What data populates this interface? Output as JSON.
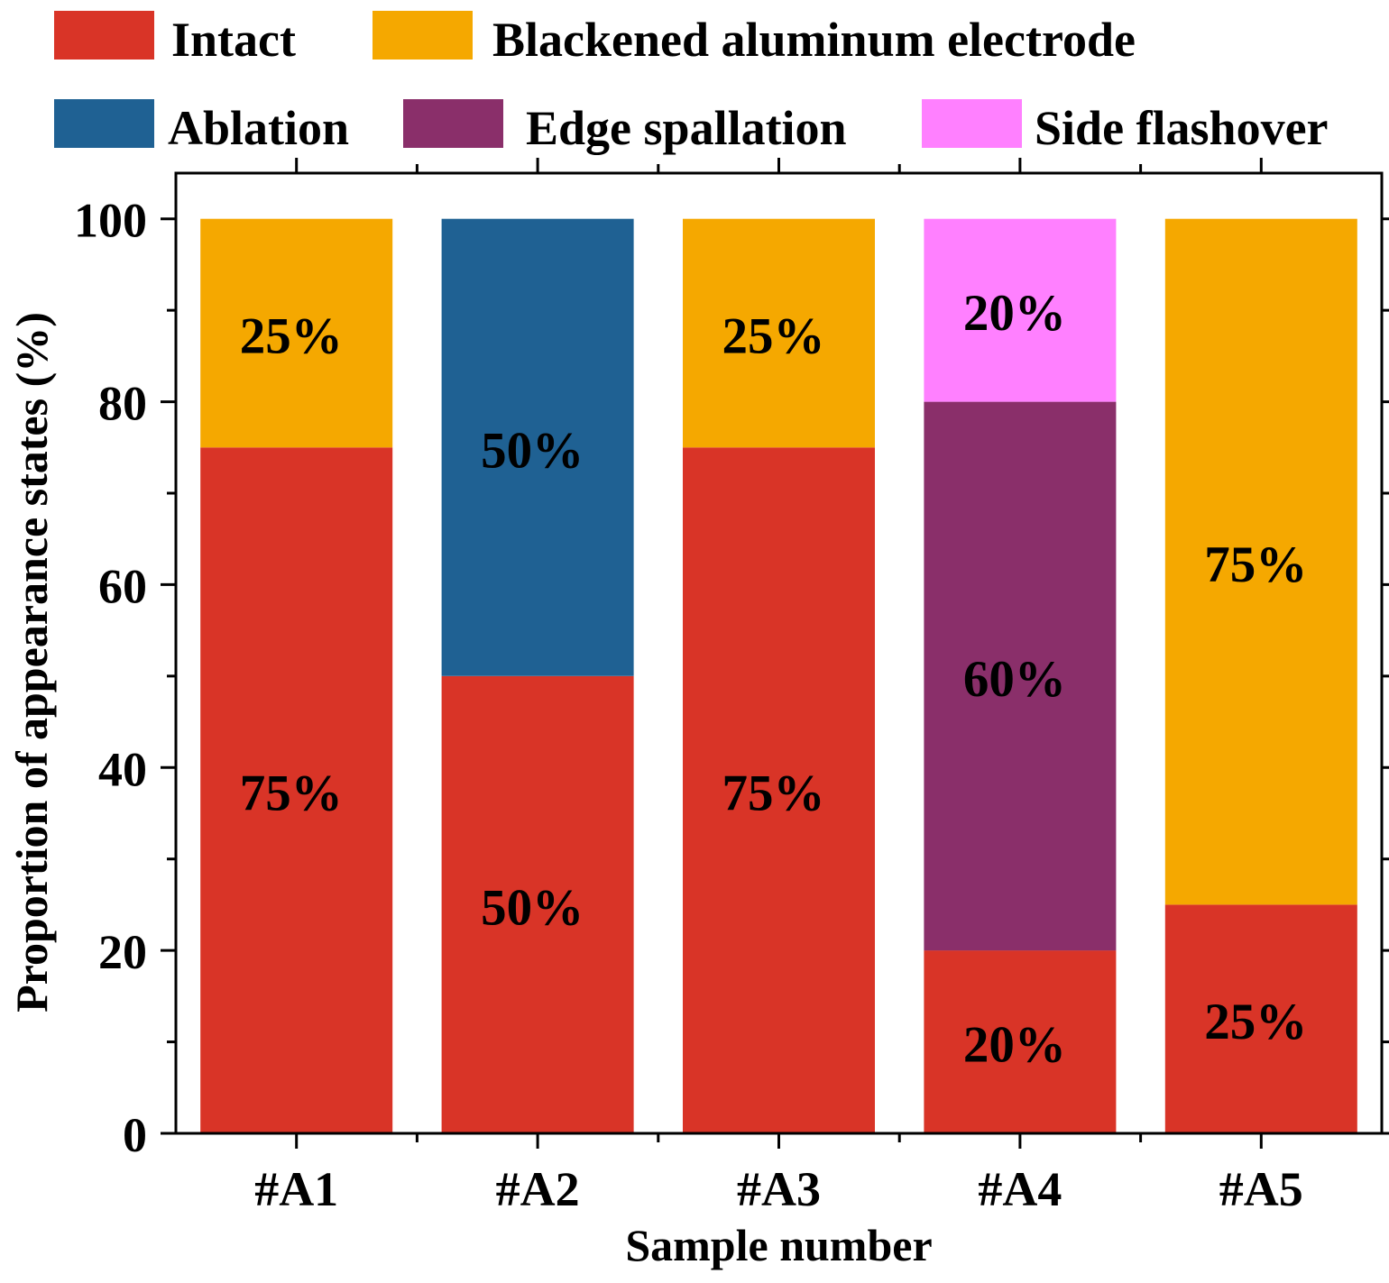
{
  "chart_data": {
    "type": "bar",
    "stacked": true,
    "title": "",
    "xlabel": "Sample number",
    "ylabel": "Proportion of appearance states (%)",
    "ylim": [
      0,
      105
    ],
    "yticks": [
      0,
      20,
      40,
      60,
      80,
      100
    ],
    "grid": false,
    "legend_position": "top",
    "categories": [
      "#A1",
      "#A2",
      "#A3",
      "#A4",
      "#A5"
    ],
    "series": [
      {
        "name": "Intact",
        "color": "#D93427",
        "values": [
          75,
          50,
          75,
          20,
          25
        ],
        "labels": [
          "75%",
          "50%",
          "75%",
          "20%",
          "25%"
        ]
      },
      {
        "name": "Blackened aluminum electrode",
        "color": "#F5A800",
        "values": [
          25,
          0,
          25,
          0,
          75
        ],
        "labels": [
          "25%",
          "",
          "25%",
          "",
          "75%"
        ]
      },
      {
        "name": "Ablation",
        "color": "#1F6193",
        "values": [
          0,
          50,
          0,
          0,
          0
        ],
        "labels": [
          "",
          "50%",
          "",
          "",
          ""
        ]
      },
      {
        "name": "Edge spallation",
        "color": "#8A2F6A",
        "values": [
          0,
          0,
          0,
          60,
          0
        ],
        "labels": [
          "",
          "",
          "",
          "60%",
          ""
        ]
      },
      {
        "name": "Side flashover",
        "color": "#FF80FF",
        "values": [
          0,
          0,
          0,
          20,
          0
        ],
        "labels": [
          "",
          "",
          "",
          "20%",
          ""
        ]
      }
    ]
  }
}
